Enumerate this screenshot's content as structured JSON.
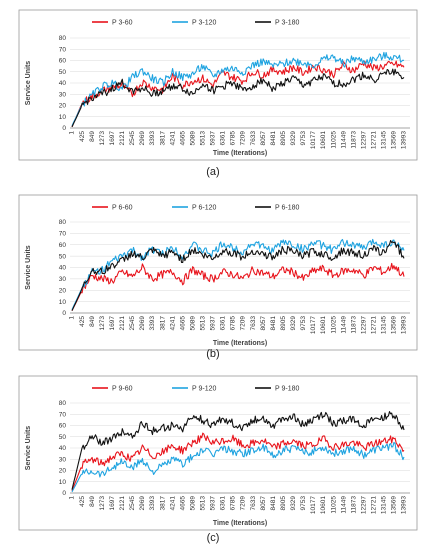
{
  "chart_data": [
    {
      "type": "line",
      "caption": "(a)",
      "xlabel": "Time (Iterations)",
      "ylabel": "Service Units",
      "ylim": [
        0,
        80
      ],
      "yticks": [
        0,
        10,
        20,
        30,
        40,
        50,
        60,
        70,
        80
      ],
      "xticks": [
        "1",
        "425",
        "849",
        "1273",
        "1697",
        "2121",
        "2545",
        "2969",
        "3393",
        "3817",
        "4241",
        "4665",
        "5089",
        "5513",
        "5937",
        "6361",
        "6785",
        "7209",
        "7633",
        "8057",
        "8481",
        "8905",
        "9329",
        "9753",
        "10177",
        "10601",
        "11025",
        "11449",
        "11873",
        "12297",
        "12721",
        "13145",
        "13569",
        "13993"
      ],
      "grid": true,
      "legend_position": "top",
      "series": [
        {
          "name": "P 3-60",
          "color": "#e8141c",
          "values": [
            1,
            22,
            28,
            33,
            36,
            38,
            30,
            41,
            36,
            34,
            46,
            38,
            42,
            44,
            38,
            49,
            45,
            42,
            50,
            47,
            52,
            50,
            54,
            49,
            55,
            52,
            48,
            56,
            51,
            58,
            53,
            55,
            57,
            54
          ]
        },
        {
          "name": "P 3-120",
          "color": "#1fa3e0",
          "values": [
            2,
            21,
            29,
            37,
            40,
            35,
            45,
            51,
            44,
            40,
            50,
            45,
            48,
            55,
            46,
            52,
            53,
            50,
            56,
            59,
            55,
            57,
            60,
            58,
            56,
            61,
            63,
            57,
            62,
            59,
            61,
            64,
            63,
            60
          ]
        },
        {
          "name": "P 3-180",
          "color": "#111111",
          "values": [
            1,
            20,
            27,
            30,
            35,
            40,
            33,
            36,
            30,
            33,
            38,
            35,
            30,
            40,
            33,
            37,
            41,
            33,
            38,
            43,
            35,
            40,
            44,
            38,
            42,
            45,
            40,
            39,
            43,
            47,
            43,
            48,
            50,
            45
          ]
        }
      ]
    },
    {
      "type": "line",
      "caption": "(b)",
      "xlabel": "Time (Iterations)",
      "ylabel": "Service Units",
      "ylim": [
        0,
        80
      ],
      "yticks": [
        0,
        10,
        20,
        30,
        40,
        50,
        60,
        70,
        80
      ],
      "xticks": [
        "1",
        "425",
        "849",
        "1273",
        "1697",
        "2121",
        "2545",
        "2969",
        "3393",
        "3817",
        "4241",
        "4665",
        "5089",
        "5513",
        "5937",
        "6361",
        "6785",
        "7209",
        "7633",
        "8057",
        "8481",
        "8905",
        "9329",
        "9753",
        "10177",
        "10601",
        "11025",
        "11449",
        "11873",
        "12297",
        "12721",
        "13145",
        "13569",
        "13993"
      ],
      "grid": true,
      "legend_position": "top",
      "series": [
        {
          "name": "P 6-60",
          "color": "#e8141c",
          "values": [
            2,
            20,
            33,
            30,
            28,
            36,
            32,
            40,
            30,
            34,
            36,
            28,
            38,
            33,
            30,
            36,
            34,
            30,
            38,
            35,
            32,
            38,
            36,
            30,
            37,
            39,
            33,
            37,
            38,
            33,
            40,
            36,
            42,
            32
          ]
        },
        {
          "name": "P 6-120",
          "color": "#1fa3e0",
          "values": [
            3,
            22,
            36,
            38,
            45,
            50,
            55,
            49,
            56,
            52,
            58,
            50,
            60,
            55,
            52,
            61,
            57,
            54,
            62,
            58,
            55,
            63,
            60,
            56,
            62,
            59,
            55,
            62,
            60,
            57,
            63,
            60,
            62,
            55
          ]
        },
        {
          "name": "P 6-180",
          "color": "#111111",
          "values": [
            2,
            21,
            38,
            36,
            42,
            46,
            53,
            48,
            55,
            50,
            54,
            47,
            56,
            51,
            48,
            55,
            53,
            49,
            55,
            52,
            49,
            56,
            54,
            50,
            54,
            52,
            49,
            55,
            53,
            51,
            56,
            53,
            64,
            48
          ]
        }
      ]
    },
    {
      "type": "line",
      "caption": "(c)",
      "xlabel": "Time (Iterations)",
      "ylabel": "Service Units",
      "ylim": [
        0,
        80
      ],
      "yticks": [
        0,
        10,
        20,
        30,
        40,
        50,
        60,
        70,
        80
      ],
      "xticks": [
        "1",
        "425",
        "849",
        "1273",
        "1697",
        "2121",
        "2545",
        "2969",
        "3393",
        "3817",
        "4241",
        "4665",
        "5089",
        "5513",
        "5937",
        "6361",
        "6785",
        "7209",
        "7633",
        "8057",
        "8481",
        "8905",
        "9329",
        "9753",
        "10177",
        "10601",
        "11025",
        "11449",
        "11873",
        "12297",
        "12721",
        "13145",
        "13569",
        "13993"
      ],
      "grid": true,
      "legend_position": "top",
      "series": [
        {
          "name": "P 9-60",
          "color": "#e8141c",
          "values": [
            2,
            25,
            30,
            26,
            32,
            35,
            30,
            40,
            33,
            36,
            42,
            38,
            45,
            50,
            44,
            46,
            48,
            42,
            44,
            47,
            40,
            44,
            46,
            42,
            43,
            48,
            41,
            43,
            45,
            40,
            44,
            46,
            48,
            38
          ]
        },
        {
          "name": "P 9-120",
          "color": "#1fa3e0",
          "values": [
            1,
            18,
            20,
            17,
            23,
            28,
            22,
            30,
            19,
            24,
            30,
            26,
            32,
            38,
            34,
            40,
            37,
            35,
            38,
            40,
            33,
            38,
            40,
            36,
            37,
            41,
            35,
            38,
            40,
            34,
            38,
            41,
            42,
            32
          ]
        },
        {
          "name": "P 9-180",
          "color": "#111111",
          "values": [
            3,
            40,
            50,
            45,
            48,
            55,
            50,
            62,
            55,
            58,
            60,
            57,
            68,
            65,
            60,
            66,
            62,
            58,
            65,
            67,
            60,
            66,
            68,
            60,
            65,
            70,
            62,
            64,
            66,
            60,
            65,
            68,
            70,
            56
          ]
        }
      ]
    }
  ]
}
